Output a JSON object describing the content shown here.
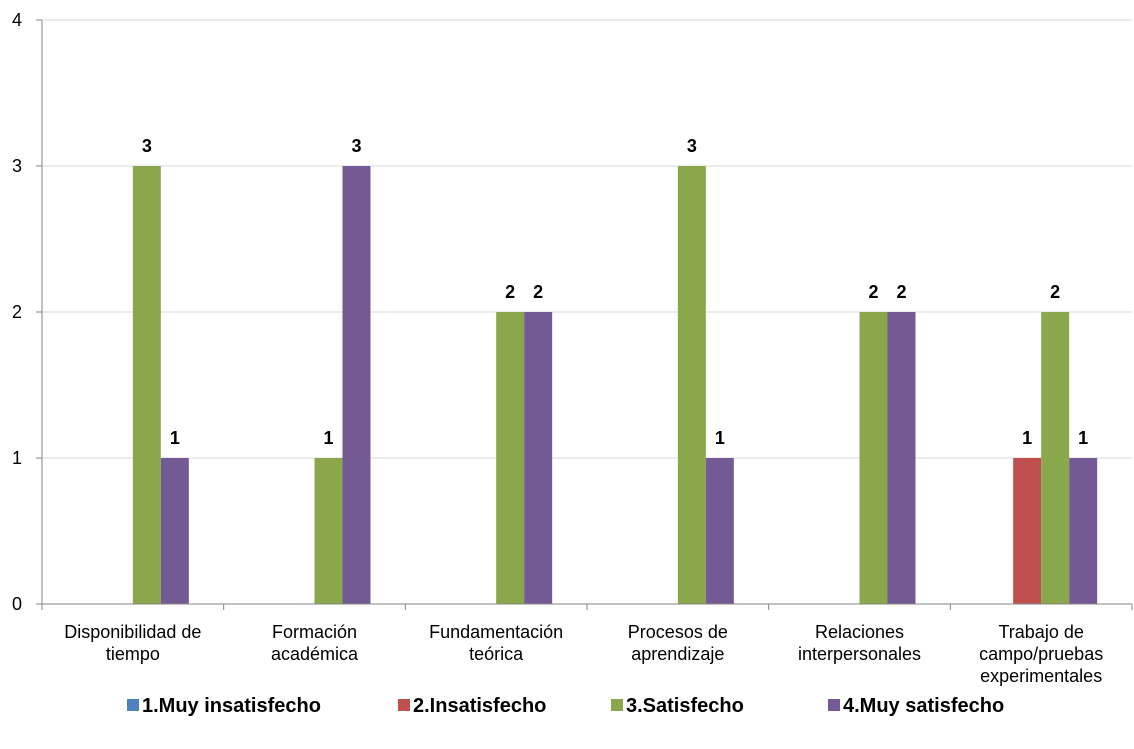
{
  "chart_data": {
    "type": "bar",
    "categories": [
      [
        "Disponibilidad de",
        "tiempo"
      ],
      [
        "Formación",
        "académica"
      ],
      [
        "Fundamentación",
        "teórica"
      ],
      [
        "Procesos de",
        "aprendizaje"
      ],
      [
        "Relaciones",
        "interpersonales"
      ],
      [
        "Trabajo de",
        "campo/pruebas",
        "experimentales"
      ]
    ],
    "series": [
      {
        "name": "1.Muy insatisfecho",
        "color": "#4f81bd",
        "values": [
          0,
          0,
          0,
          0,
          0,
          0
        ]
      },
      {
        "name": "2.Insatisfecho",
        "color": "#c0504d",
        "values": [
          0,
          0,
          0,
          0,
          0,
          1
        ]
      },
      {
        "name": "3.Satisfecho",
        "color": "#8aa84b",
        "values": [
          3,
          1,
          2,
          3,
          2,
          2
        ]
      },
      {
        "name": "4.Muy satisfecho",
        "color": "#735a94",
        "values": [
          1,
          3,
          2,
          1,
          2,
          1
        ]
      }
    ],
    "ylim": [
      0,
      4
    ],
    "yticks": [
      0,
      1,
      2,
      3,
      4
    ],
    "grid": true,
    "legend": "bottom",
    "title": "",
    "xlabel": "",
    "ylabel": ""
  }
}
